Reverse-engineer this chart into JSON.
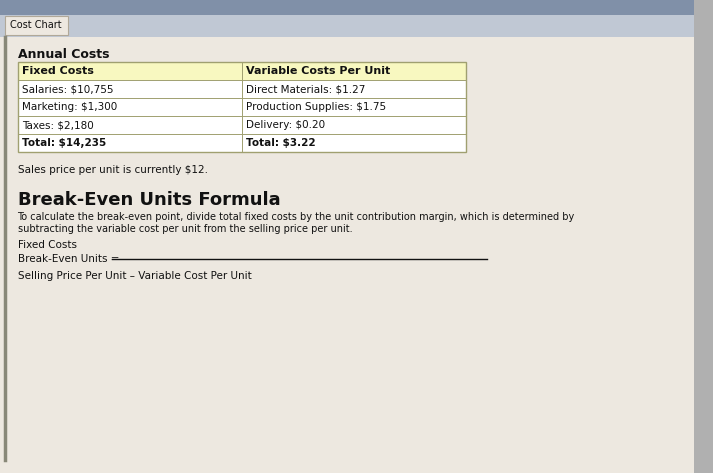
{
  "tab_label": "Cost Chart",
  "section_title": "Annual Costs",
  "table_header_left": "Fixed Costs",
  "table_header_right": "Variable Costs Per Unit",
  "table_header_bg": "#f8f8c0",
  "fixed_costs_rows": [
    "Salaries: $10,755",
    "Marketing: $1,300",
    "Taxes: $2,180",
    "Total: $14,235"
  ],
  "variable_costs_rows": [
    "Direct Materials: $1.27",
    "Production Supplies: $1.75",
    "Delivery: $0.20",
    "Total: $3.22"
  ],
  "sales_price_text": "Sales price per unit is currently $12.",
  "formula_title": "Break-Even Units Formula",
  "formula_desc_line1": "To calculate the break-even point, divide total fixed costs by the unit contribution margin, which is determined by",
  "formula_desc_line2": "subtracting the variable cost per unit from the selling price per unit.",
  "formula_numerator_label": "Fixed Costs",
  "formula_lhs": "Break-Even Units =",
  "formula_denominator": "Selling Price Per Unit – Variable Cost Per Unit",
  "top_bar_color": "#b0b8c8",
  "tab_bg": "#ede8e0",
  "tab_border": "#b0a898",
  "content_bg": "#ede8e0",
  "outer_bg": "#b0b0b0",
  "table_bg": "#ffffff",
  "table_border_color": "#a0a070",
  "left_accent_color": "#888878",
  "text_color": "#111111",
  "text_color_light": "#333333"
}
